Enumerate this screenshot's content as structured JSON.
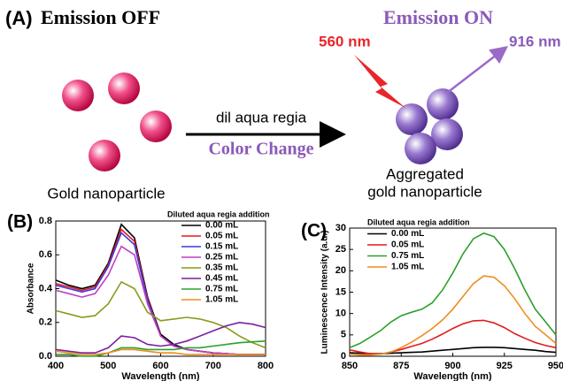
{
  "panel_a": {
    "label": "(A)",
    "title_off": "Emission OFF",
    "title_on": "Emission ON",
    "excitation": "560 nm",
    "emission": "916 nm",
    "arrow_top": "dil aqua regia",
    "arrow_bottom": "Color Change",
    "left_caption": "Gold nanoparticle",
    "right_caption": [
      "Aggregated",
      "gold nanoparticle"
    ]
  },
  "chart_data": [
    {
      "type": "line",
      "panel_label": "(B)",
      "legend_title": "Diluted aqua regia addition",
      "xlabel": "Wavelength (nm)",
      "ylabel": "Absorbance",
      "xlim": [
        400,
        800
      ],
      "xticks": [
        400,
        500,
        600,
        700,
        800
      ],
      "ylim": [
        0,
        0.8
      ],
      "yticks": [
        {
          "value": 0,
          "label": "0.0"
        },
        0.2,
        0.4,
        0.6,
        0.8
      ],
      "x": [
        400,
        425,
        450,
        475,
        500,
        525,
        550,
        575,
        600,
        625,
        650,
        675,
        700,
        725,
        750,
        775,
        800
      ],
      "series": [
        {
          "name": "0.00 mL",
          "color": "#000000",
          "values": [
            0.45,
            0.42,
            0.4,
            0.42,
            0.55,
            0.78,
            0.7,
            0.35,
            0.13,
            0.07,
            0.04,
            0.03,
            0.02,
            0.015,
            0.01,
            0.01,
            0.01
          ]
        },
        {
          "name": "0.05 mL",
          "color": "#e41a1c",
          "values": [
            0.43,
            0.41,
            0.39,
            0.41,
            0.54,
            0.75,
            0.68,
            0.34,
            0.12,
            0.06,
            0.04,
            0.03,
            0.02,
            0.015,
            0.01,
            0.01,
            0.01
          ]
        },
        {
          "name": "0.15 mL",
          "color": "#3a3adf",
          "values": [
            0.42,
            0.4,
            0.38,
            0.4,
            0.53,
            0.73,
            0.66,
            0.33,
            0.12,
            0.06,
            0.04,
            0.03,
            0.02,
            0.015,
            0.01,
            0.01,
            0.01
          ]
        },
        {
          "name": "0.25 mL",
          "color": "#c040c0",
          "values": [
            0.39,
            0.37,
            0.35,
            0.37,
            0.48,
            0.65,
            0.6,
            0.31,
            0.12,
            0.06,
            0.04,
            0.03,
            0.02,
            0.015,
            0.01,
            0.01,
            0.01
          ]
        },
        {
          "name": "0.35 mL",
          "color": "#8a9a1a",
          "values": [
            0.27,
            0.25,
            0.23,
            0.24,
            0.31,
            0.44,
            0.4,
            0.26,
            0.21,
            0.22,
            0.23,
            0.22,
            0.2,
            0.17,
            0.12,
            0.08,
            0.05
          ]
        },
        {
          "name": "0.45 mL",
          "color": "#7a1fa0",
          "values": [
            0.04,
            0.03,
            0.02,
            0.02,
            0.05,
            0.12,
            0.11,
            0.07,
            0.06,
            0.07,
            0.09,
            0.12,
            0.15,
            0.18,
            0.2,
            0.19,
            0.17
          ]
        },
        {
          "name": "0.75 mL",
          "color": "#2ca02c",
          "values": [
            0.01,
            0.01,
            0.0,
            0.0,
            0.02,
            0.05,
            0.05,
            0.04,
            0.04,
            0.04,
            0.05,
            0.05,
            0.06,
            0.07,
            0.08,
            0.085,
            0.09
          ]
        },
        {
          "name": "1.05 mL",
          "color": "#f08c1e",
          "values": [
            0.03,
            0.02,
            0.01,
            0.01,
            0.02,
            0.04,
            0.04,
            0.03,
            0.02,
            0.02,
            0.01,
            0.01,
            0.01,
            0.01,
            0.01,
            0.01,
            0.01
          ]
        }
      ]
    },
    {
      "type": "line",
      "panel_label": "(C)",
      "legend_title": "Diluted aqua regia addition",
      "xlabel": "Wavelength (nm)",
      "ylabel": "Luminescence Intensity (a.u.)",
      "xlim": [
        850,
        950
      ],
      "xticks": [
        850,
        875,
        900,
        925,
        950
      ],
      "ylim": [
        0,
        30
      ],
      "yticks": [
        0,
        5,
        10,
        15,
        20,
        25,
        30
      ],
      "x": [
        850,
        855,
        860,
        865,
        870,
        875,
        880,
        885,
        890,
        895,
        900,
        905,
        910,
        915,
        920,
        925,
        930,
        935,
        940,
        945,
        950
      ],
      "series": [
        {
          "name": "0.00 mL",
          "color": "#000000",
          "values": [
            0.8,
            0.7,
            0.6,
            0.6,
            0.7,
            0.8,
            0.9,
            1.0,
            1.2,
            1.4,
            1.6,
            1.8,
            2.0,
            2.1,
            2.1,
            2.0,
            1.8,
            1.6,
            1.4,
            1.1,
            0.9
          ]
        },
        {
          "name": "0.05 mL",
          "color": "#e41a1c",
          "values": [
            1.5,
            1.0,
            0.6,
            0.5,
            1.0,
            1.6,
            2.3,
            3.0,
            4.0,
            5.2,
            6.5,
            7.6,
            8.3,
            8.4,
            7.8,
            6.7,
            5.3,
            4.2,
            3.2,
            2.5,
            2.0
          ]
        },
        {
          "name": "0.75 mL",
          "color": "#2ca02c",
          "values": [
            2.0,
            3.0,
            4.5,
            6.0,
            8.0,
            9.5,
            10.3,
            11.0,
            12.5,
            15.5,
            19.5,
            24.0,
            27.5,
            28.8,
            28.0,
            25.0,
            20.5,
            15.5,
            11.0,
            8.0,
            5.0
          ]
        },
        {
          "name": "1.05 mL",
          "color": "#f08c1e",
          "values": [
            0.5,
            0.3,
            0.3,
            0.5,
            1.0,
            2.0,
            3.3,
            4.8,
            6.5,
            8.5,
            11.0,
            14.0,
            17.0,
            18.8,
            18.5,
            16.5,
            13.5,
            10.0,
            7.0,
            5.0,
            3.0
          ]
        }
      ]
    }
  ]
}
